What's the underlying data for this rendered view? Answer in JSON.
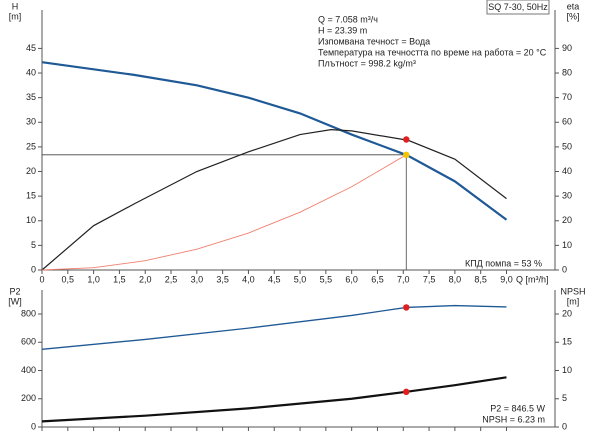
{
  "chart_data": [
    {
      "type": "line",
      "title": "SQ 7-30, 50Hz",
      "ylabel": "H",
      "yunit": "[m]",
      "y2label": "eta",
      "y2unit": "[%]",
      "xlabel": "Q [m³/h]",
      "info": [
        "Q = 7.058 m³/ч",
        "H = 23.39 m",
        "Изпомвана течност = Вода",
        "Температура на течността по време на работа = 20 °C",
        "Плътност = 998.2 kg/m³"
      ],
      "note": "КПД помпа = 53 %",
      "xlim": [
        0,
        9.94
      ],
      "xticks": [
        0,
        {
          "value": 0.5,
          "label": "0,5"
        },
        {
          "value": 1,
          "label": "1,0"
        },
        {
          "value": 1.5,
          "label": "1,5"
        },
        {
          "value": 2,
          "label": "2,0"
        },
        {
          "value": 2.5,
          "label": "2,5"
        },
        {
          "value": 3,
          "label": "3,0"
        },
        {
          "value": 3.5,
          "label": "3,5"
        },
        {
          "value": 4,
          "label": "4,0"
        },
        {
          "value": 4.5,
          "label": "4,5"
        },
        {
          "value": 5,
          "label": "5,0"
        },
        {
          "value": 5.5,
          "label": "5,5"
        },
        {
          "value": 6,
          "label": "6,0"
        },
        {
          "value": 6.5,
          "label": "6,5"
        },
        {
          "value": 7,
          "label": "7,0"
        },
        {
          "value": 7.5,
          "label": "7,5"
        },
        {
          "value": 8,
          "label": "8,0"
        },
        {
          "value": 8.5,
          "label": "8,5"
        },
        {
          "value": 9,
          "label": "9,0"
        }
      ],
      "show_xtick_labels": true,
      "ylim": [
        0,
        52.8
      ],
      "yticks": [
        0,
        5,
        10,
        15,
        20,
        25,
        30,
        35,
        40,
        45
      ],
      "y2lim": [
        0,
        105.6
      ],
      "y2ticks": [
        0,
        10,
        20,
        30,
        40,
        50,
        60,
        70,
        80,
        90
      ],
      "series": [
        {
          "color": "#1f5a96",
          "width": 2.2,
          "x": [
            0,
            1.8,
            3,
            4,
            5,
            6,
            7,
            7.058,
            8,
            9
          ],
          "values": [
            42.2,
            39.6,
            37.5,
            35,
            31.8,
            27.5,
            23.6,
            23.39,
            18,
            10.2
          ]
        },
        {
          "color": "#222222",
          "width": 1.2,
          "axis": "y2",
          "x": [
            0,
            1,
            1.8,
            3,
            4,
            5,
            5.6,
            6,
            7,
            7.058,
            8,
            9
          ],
          "values": [
            0,
            18,
            27,
            40,
            48,
            55,
            57,
            56.5,
            53,
            53,
            45,
            29
          ]
        },
        {
          "color": "#f08070",
          "width": 0.9,
          "x": [
            0,
            1,
            2,
            3,
            4,
            5,
            6,
            7.058
          ],
          "values": [
            0,
            0.47,
            1.88,
            4.23,
            7.51,
            11.74,
            16.9,
            23.39
          ]
        }
      ],
      "markers": [
        {
          "x": 7.058,
          "y": 53,
          "axis": "y2",
          "color": "#e02020"
        },
        {
          "x": 7.058,
          "y": 23.39,
          "color": "#f5c400",
          "crosshair": true
        }
      ]
    },
    {
      "type": "line",
      "ylabel": "P2",
      "yunit": "[W]",
      "y2label": "NPSH",
      "y2unit": "[m]",
      "info": [
        "P2 = 846.5 W",
        "NPSH = 6.23 m"
      ],
      "xlim": [
        0,
        9.94
      ],
      "xticks": [
        0,
        0.5,
        1,
        1.5,
        2,
        2.5,
        3,
        3.5,
        4,
        4.5,
        5,
        5.5,
        6,
        6.5,
        7,
        7.5,
        8,
        8.5,
        9
      ],
      "show_xtick_labels": false,
      "ylim": [
        0,
        970
      ],
      "yticks": [
        0,
        200,
        400,
        600,
        800
      ],
      "y2lim": [
        0,
        24.25
      ],
      "y2ticks": [
        0,
        5,
        10,
        15,
        20
      ],
      "series": [
        {
          "color": "#1f5a96",
          "width": 1.3,
          "x": [
            0,
            2,
            4,
            6,
            7.058,
            8,
            9
          ],
          "values": [
            550,
            620,
            700,
            790,
            846.5,
            860,
            850
          ]
        },
        {
          "color": "#111111",
          "width": 2.2,
          "axis": "y2",
          "x": [
            0,
            2,
            4,
            6,
            7.058,
            8,
            9
          ],
          "values": [
            1.0,
            2.0,
            3.3,
            5.0,
            6.23,
            7.4,
            8.8
          ]
        }
      ],
      "markers": [
        {
          "x": 7.058,
          "y": 846.5,
          "color": "#e02020"
        },
        {
          "x": 7.058,
          "y": 6.23,
          "axis": "y2",
          "color": "#e02020"
        }
      ]
    }
  ]
}
